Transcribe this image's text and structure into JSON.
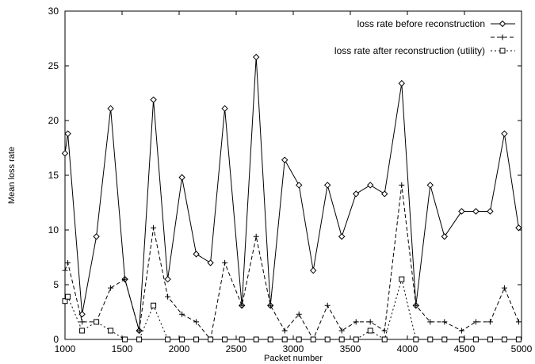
{
  "chart_data": {
    "type": "line",
    "xlabel": "Packet number",
    "ylabel": "Mean loss rate",
    "xlim": [
      1000,
      5000
    ],
    "ylim": [
      0,
      30
    ],
    "xticks": [
      1000,
      1500,
      2000,
      2500,
      3000,
      3500,
      4000,
      4500,
      5000
    ],
    "yticks": [
      0,
      5,
      10,
      15,
      20,
      25,
      30
    ],
    "grid": false,
    "legend_position": "top-right",
    "series": [
      {
        "name": "loss rate before reconstruction",
        "marker": "diamond",
        "line_style": "solid",
        "x": [
          1000,
          1025,
          1150,
          1275,
          1400,
          1525,
          1650,
          1775,
          1900,
          2025,
          2150,
          2275,
          2400,
          2550,
          2675,
          2800,
          2925,
          3050,
          3175,
          3300,
          3425,
          3550,
          3675,
          3800,
          3950,
          4075,
          4200,
          4325,
          4475,
          4600,
          4725,
          4850,
          4975
        ],
        "y": [
          17.0,
          18.8,
          2.3,
          9.4,
          21.1,
          5.5,
          0.8,
          21.9,
          5.5,
          14.8,
          7.8,
          7.0,
          21.1,
          3.1,
          25.8,
          3.1,
          16.4,
          14.1,
          6.3,
          14.1,
          9.4,
          13.3,
          14.1,
          13.3,
          23.4,
          3.1,
          14.1,
          9.4,
          11.7,
          11.7,
          11.7,
          18.8,
          10.2
        ]
      },
      {
        "name": "",
        "marker": "plus",
        "line_style": "dashed",
        "x": [
          1000,
          1025,
          1150,
          1275,
          1400,
          1525,
          1650,
          1775,
          1900,
          2025,
          2150,
          2275,
          2400,
          2550,
          2675,
          2800,
          2925,
          3050,
          3175,
          3300,
          3425,
          3550,
          3675,
          3800,
          3950,
          4075,
          4200,
          4325,
          4475,
          4600,
          4725,
          4850,
          4975
        ],
        "y": [
          6.3,
          7.0,
          1.6,
          1.6,
          4.7,
          5.5,
          0.8,
          10.2,
          3.9,
          2.3,
          1.6,
          0.0,
          7.0,
          3.1,
          9.4,
          3.1,
          0.8,
          2.3,
          0.0,
          3.1,
          0.8,
          1.6,
          1.6,
          0.8,
          14.1,
          3.1,
          1.6,
          1.6,
          0.8,
          1.6,
          1.6,
          4.7,
          1.6
        ]
      },
      {
        "name": "loss rate after reconstruction (utility)",
        "marker": "square",
        "line_style": "dotted",
        "x": [
          1000,
          1025,
          1150,
          1275,
          1400,
          1525,
          1650,
          1775,
          1900,
          2025,
          2150,
          2275,
          2400,
          2550,
          2675,
          2800,
          2925,
          3050,
          3175,
          3300,
          3425,
          3550,
          3675,
          3800,
          3950,
          4075,
          4200,
          4325,
          4475,
          4600,
          4725,
          4850,
          4975
        ],
        "y": [
          3.5,
          3.9,
          0.8,
          1.6,
          0.8,
          0.0,
          0.0,
          3.1,
          0.0,
          0.0,
          0.0,
          0.0,
          0.0,
          0.0,
          0.0,
          0.0,
          0.0,
          0.0,
          0.0,
          0.0,
          0.0,
          0.0,
          0.8,
          0.0,
          5.5,
          0.0,
          0.0,
          0.0,
          0.0,
          0.0,
          0.0,
          0.0,
          0.0
        ]
      }
    ]
  }
}
